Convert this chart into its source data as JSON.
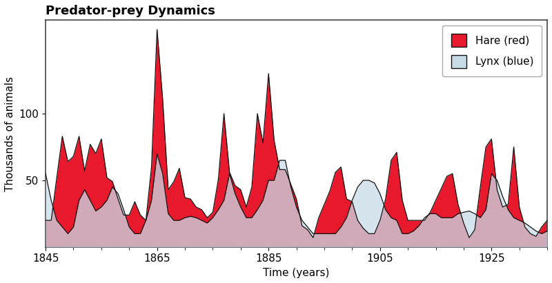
{
  "title": "Predator-prey Dynamics",
  "xlabel": "Time (years)",
  "ylabel": "Thousands of animals",
  "years": [
    1845,
    1846,
    1847,
    1848,
    1849,
    1850,
    1851,
    1852,
    1853,
    1854,
    1855,
    1856,
    1857,
    1858,
    1859,
    1860,
    1861,
    1862,
    1863,
    1864,
    1865,
    1866,
    1867,
    1868,
    1869,
    1870,
    1871,
    1872,
    1873,
    1874,
    1875,
    1876,
    1877,
    1878,
    1879,
    1880,
    1881,
    1882,
    1883,
    1884,
    1885,
    1886,
    1887,
    1888,
    1889,
    1890,
    1891,
    1892,
    1893,
    1894,
    1895,
    1896,
    1897,
    1898,
    1899,
    1900,
    1901,
    1902,
    1903,
    1904,
    1905,
    1906,
    1907,
    1908,
    1909,
    1910,
    1911,
    1912,
    1913,
    1914,
    1915,
    1916,
    1917,
    1918,
    1919,
    1920,
    1921,
    1922,
    1923,
    1924,
    1925,
    1926,
    1927,
    1928,
    1929,
    1930,
    1931,
    1932,
    1933,
    1934,
    1935
  ],
  "hare": [
    20,
    20,
    52,
    83,
    64,
    68,
    83,
    57,
    77,
    70,
    81,
    52,
    49,
    36,
    24,
    24,
    34,
    24,
    20,
    60,
    163,
    111,
    43,
    49,
    59,
    37,
    36,
    30,
    28,
    22,
    26,
    51,
    100,
    56,
    46,
    43,
    30,
    45,
    100,
    78,
    130,
    80,
    58,
    58,
    47,
    36,
    16,
    13,
    7,
    22,
    32,
    42,
    56,
    60,
    36,
    34,
    20,
    14,
    10,
    10,
    20,
    36,
    65,
    71,
    35,
    20,
    20,
    20,
    20,
    26,
    35,
    44,
    53,
    55,
    32,
    18,
    7,
    13,
    45,
    75,
    81,
    43,
    30,
    32,
    75,
    30,
    15,
    10,
    8,
    15,
    20
  ],
  "lynx": [
    55,
    35,
    20,
    15,
    10,
    15,
    35,
    43,
    35,
    27,
    30,
    35,
    45,
    40,
    28,
    15,
    10,
    10,
    20,
    35,
    70,
    55,
    25,
    20,
    20,
    22,
    23,
    22,
    20,
    18,
    22,
    28,
    35,
    55,
    40,
    30,
    22,
    22,
    28,
    35,
    50,
    50,
    65,
    65,
    45,
    30,
    20,
    15,
    10,
    10,
    10,
    10,
    10,
    15,
    22,
    35,
    45,
    50,
    50,
    48,
    40,
    28,
    22,
    20,
    10,
    10,
    12,
    16,
    22,
    25,
    25,
    22,
    22,
    22,
    25,
    26,
    27,
    25,
    22,
    28,
    55,
    50,
    38,
    28,
    22,
    20,
    18,
    15,
    12,
    10,
    12
  ],
  "hare_color": "#e8192c",
  "lynx_color": "#c8dce8",
  "hare_edge_color": "#111111",
  "lynx_edge_color": "#111111",
  "overlap_color": "#c8a0b0",
  "background_color": "#ffffff",
  "yticks": [
    50,
    100
  ],
  "xticks": [
    1845,
    1865,
    1885,
    1905,
    1925
  ],
  "xlim": [
    1845,
    1935
  ],
  "ylim": [
    0,
    170
  ],
  "title_fontsize": 13,
  "label_fontsize": 11,
  "tick_fontsize": 11
}
